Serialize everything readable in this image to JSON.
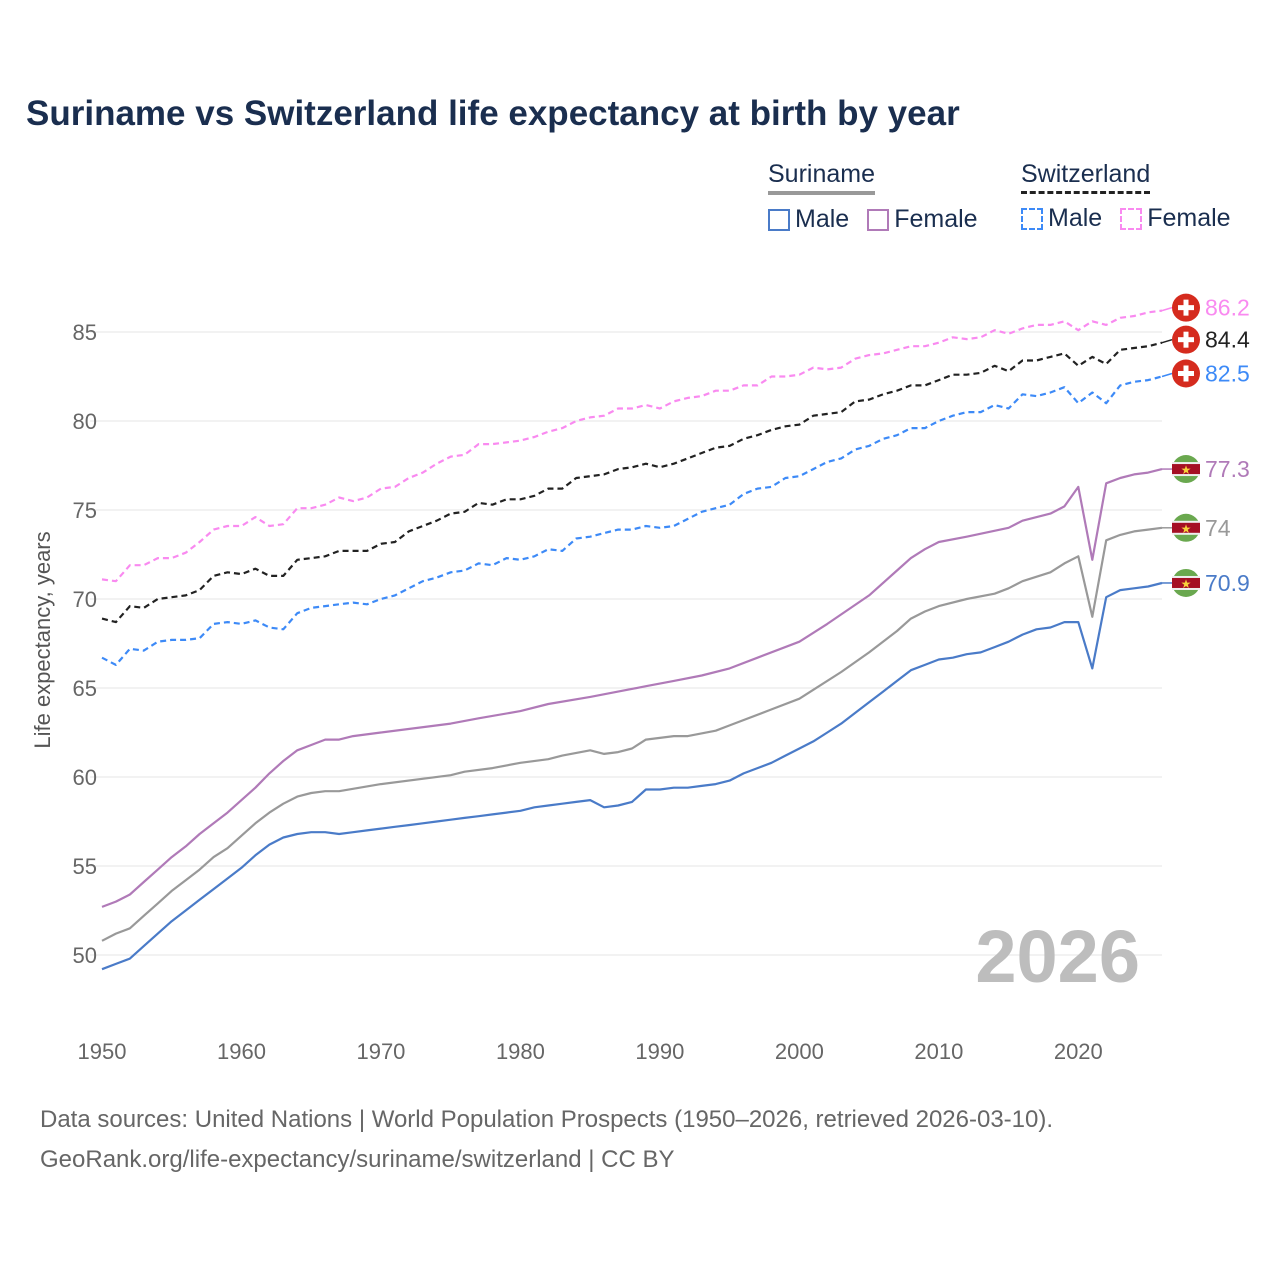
{
  "title": "Suriname vs Switzerland life expectancy at birth by year",
  "legend": {
    "groups": [
      {
        "name": "Suriname",
        "items": [
          "Male",
          "Female"
        ]
      },
      {
        "name": "Switzerland",
        "items": [
          "Male",
          "Female"
        ]
      }
    ]
  },
  "footer": {
    "line1": "Data sources: United Nations | World Population Prospects (1950–2026, retrieved 2026-03-10).",
    "line2": "GeoRank.org/life-expectancy/suriname/switzerland | CC BY"
  },
  "chart_data": {
    "type": "line",
    "title": "Suriname vs Switzerland life expectancy at birth by year",
    "xlabel": "",
    "ylabel": "Life expectancy, years",
    "xlim": [
      1950,
      2026
    ],
    "ylim": [
      48.5,
      87
    ],
    "xticks": [
      1950,
      1960,
      1970,
      1980,
      1990,
      2000,
      2010,
      2020
    ],
    "yticks": [
      50,
      55,
      60,
      65,
      70,
      75,
      80,
      85
    ],
    "grid": true,
    "year_watermark": "2026",
    "series": [
      {
        "name": "Switzerland Female",
        "country": "Switzerland",
        "color": "#f98af0",
        "dashed": true,
        "end_label": "86.2",
        "flag": "switzerland",
        "x": [
          1950,
          1951,
          1952,
          1953,
          1954,
          1955,
          1956,
          1957,
          1958,
          1959,
          1960,
          1961,
          1962,
          1963,
          1964,
          1965,
          1966,
          1967,
          1968,
          1969,
          1970,
          1971,
          1972,
          1973,
          1974,
          1975,
          1976,
          1977,
          1978,
          1979,
          1980,
          1981,
          1982,
          1983,
          1984,
          1985,
          1986,
          1987,
          1988,
          1989,
          1990,
          1991,
          1992,
          1993,
          1994,
          1995,
          1996,
          1997,
          1998,
          1999,
          2000,
          2001,
          2002,
          2003,
          2004,
          2005,
          2006,
          2007,
          2008,
          2009,
          2010,
          2011,
          2012,
          2013,
          2014,
          2015,
          2016,
          2017,
          2018,
          2019,
          2020,
          2021,
          2022,
          2023,
          2024,
          2025,
          2026
        ],
        "y": [
          71.1,
          71.0,
          71.9,
          71.9,
          72.3,
          72.3,
          72.6,
          73.2,
          73.9,
          74.1,
          74.1,
          74.6,
          74.1,
          74.2,
          75.1,
          75.1,
          75.3,
          75.7,
          75.5,
          75.7,
          76.2,
          76.3,
          76.8,
          77.1,
          77.6,
          78.0,
          78.1,
          78.7,
          78.7,
          78.8,
          78.9,
          79.1,
          79.4,
          79.6,
          80.0,
          80.2,
          80.3,
          80.7,
          80.7,
          80.9,
          80.7,
          81.1,
          81.3,
          81.4,
          81.7,
          81.7,
          82.0,
          82.0,
          82.5,
          82.5,
          82.6,
          83.0,
          82.9,
          83.0,
          83.5,
          83.7,
          83.8,
          84.0,
          84.2,
          84.2,
          84.4,
          84.7,
          84.6,
          84.7,
          85.1,
          84.9,
          85.2,
          85.4,
          85.4,
          85.6,
          85.1,
          85.6,
          85.4,
          85.8,
          85.9,
          86.1,
          86.2
        ]
      },
      {
        "name": "Switzerland",
        "country": "Switzerland",
        "color": "#222222",
        "dashed": true,
        "end_label": "84.4",
        "flag": "switzerland",
        "x": [
          1950,
          1951,
          1952,
          1953,
          1954,
          1955,
          1956,
          1957,
          1958,
          1959,
          1960,
          1961,
          1962,
          1963,
          1964,
          1965,
          1966,
          1967,
          1968,
          1969,
          1970,
          1971,
          1972,
          1973,
          1974,
          1975,
          1976,
          1977,
          1978,
          1979,
          1980,
          1981,
          1982,
          1983,
          1984,
          1985,
          1986,
          1987,
          1988,
          1989,
          1990,
          1991,
          1992,
          1993,
          1994,
          1995,
          1996,
          1997,
          1998,
          1999,
          2000,
          2001,
          2002,
          2003,
          2004,
          2005,
          2006,
          2007,
          2008,
          2009,
          2010,
          2011,
          2012,
          2013,
          2014,
          2015,
          2016,
          2017,
          2018,
          2019,
          2020,
          2021,
          2022,
          2023,
          2024,
          2025,
          2026
        ],
        "y": [
          68.9,
          68.7,
          69.6,
          69.5,
          70.0,
          70.1,
          70.2,
          70.5,
          71.3,
          71.5,
          71.4,
          71.7,
          71.3,
          71.3,
          72.2,
          72.3,
          72.4,
          72.7,
          72.7,
          72.7,
          73.1,
          73.2,
          73.8,
          74.1,
          74.4,
          74.8,
          74.9,
          75.4,
          75.3,
          75.6,
          75.6,
          75.8,
          76.2,
          76.2,
          76.8,
          76.9,
          77.0,
          77.3,
          77.4,
          77.6,
          77.4,
          77.6,
          77.9,
          78.2,
          78.5,
          78.6,
          79.0,
          79.2,
          79.5,
          79.7,
          79.8,
          80.3,
          80.4,
          80.5,
          81.1,
          81.2,
          81.5,
          81.7,
          82.0,
          82.0,
          82.3,
          82.6,
          82.6,
          82.7,
          83.1,
          82.8,
          83.4,
          83.4,
          83.6,
          83.8,
          83.1,
          83.6,
          83.2,
          84.0,
          84.1,
          84.2,
          84.4
        ]
      },
      {
        "name": "Switzerland Male",
        "country": "Switzerland",
        "color": "#3d8af7",
        "dashed": true,
        "end_label": "82.5",
        "flag": "switzerland",
        "x": [
          1950,
          1951,
          1952,
          1953,
          1954,
          1955,
          1956,
          1957,
          1958,
          1959,
          1960,
          1961,
          1962,
          1963,
          1964,
          1965,
          1966,
          1967,
          1968,
          1969,
          1970,
          1971,
          1972,
          1973,
          1974,
          1975,
          1976,
          1977,
          1978,
          1979,
          1980,
          1981,
          1982,
          1983,
          1984,
          1985,
          1986,
          1987,
          1988,
          1989,
          1990,
          1991,
          1992,
          1993,
          1994,
          1995,
          1996,
          1997,
          1998,
          1999,
          2000,
          2001,
          2002,
          2003,
          2004,
          2005,
          2006,
          2007,
          2008,
          2009,
          2010,
          2011,
          2012,
          2013,
          2014,
          2015,
          2016,
          2017,
          2018,
          2019,
          2020,
          2021,
          2022,
          2023,
          2024,
          2025,
          2026
        ],
        "y": [
          66.7,
          66.3,
          67.2,
          67.1,
          67.6,
          67.7,
          67.7,
          67.8,
          68.6,
          68.7,
          68.6,
          68.8,
          68.4,
          68.3,
          69.2,
          69.5,
          69.6,
          69.7,
          69.8,
          69.7,
          70.0,
          70.2,
          70.6,
          71.0,
          71.2,
          71.5,
          71.6,
          72.0,
          71.9,
          72.3,
          72.2,
          72.4,
          72.8,
          72.7,
          73.4,
          73.5,
          73.7,
          73.9,
          73.9,
          74.1,
          74.0,
          74.1,
          74.5,
          74.9,
          75.1,
          75.3,
          75.9,
          76.2,
          76.3,
          76.8,
          76.9,
          77.3,
          77.7,
          77.9,
          78.4,
          78.6,
          79.0,
          79.2,
          79.6,
          79.6,
          80.0,
          80.3,
          80.5,
          80.5,
          80.9,
          80.7,
          81.5,
          81.4,
          81.6,
          81.9,
          81.0,
          81.6,
          81.0,
          82.0,
          82.2,
          82.3,
          82.5
        ]
      },
      {
        "name": "Suriname Female",
        "country": "Suriname",
        "color": "#b07ab8",
        "dashed": false,
        "end_label": "77.3",
        "flag": "suriname",
        "x": [
          1950,
          1951,
          1952,
          1953,
          1954,
          1955,
          1956,
          1957,
          1958,
          1959,
          1960,
          1961,
          1962,
          1963,
          1964,
          1965,
          1966,
          1967,
          1968,
          1970,
          1975,
          1977,
          1980,
          1982,
          1985,
          1987,
          1989,
          1991,
          1993,
          1995,
          1997,
          2000,
          2002,
          2005,
          2007,
          2008,
          2009,
          2010,
          2012,
          2015,
          2016,
          2018,
          2019,
          2020,
          2021,
          2022,
          2023,
          2024,
          2025,
          2026
        ],
        "y": [
          52.7,
          53.0,
          53.4,
          54.1,
          54.8,
          55.5,
          56.1,
          56.8,
          57.4,
          58.0,
          58.7,
          59.4,
          60.2,
          60.9,
          61.5,
          61.8,
          62.1,
          62.1,
          62.3,
          62.5,
          63.0,
          63.3,
          63.7,
          64.1,
          64.5,
          64.8,
          65.1,
          65.4,
          65.7,
          66.1,
          66.7,
          67.6,
          68.6,
          70.2,
          71.6,
          72.3,
          72.8,
          73.2,
          73.5,
          74.0,
          74.4,
          74.8,
          75.2,
          76.3,
          72.2,
          76.5,
          76.8,
          77.0,
          77.1,
          77.3
        ]
      },
      {
        "name": "Suriname",
        "country": "Suriname",
        "color": "#999999",
        "dashed": false,
        "end_label": "74",
        "flag": "suriname",
        "x": [
          1950,
          1951,
          1952,
          1953,
          1954,
          1955,
          1956,
          1957,
          1958,
          1959,
          1960,
          1961,
          1962,
          1963,
          1964,
          1965,
          1966,
          1967,
          1970,
          1975,
          1976,
          1978,
          1980,
          1982,
          1983,
          1985,
          1986,
          1987,
          1988,
          1989,
          1991,
          1992,
          1994,
          1995,
          1998,
          2000,
          2001,
          2003,
          2005,
          2007,
          2008,
          2009,
          2010,
          2012,
          2014,
          2015,
          2016,
          2018,
          2019,
          2020,
          2021,
          2022,
          2023,
          2024,
          2025,
          2026
        ],
        "y": [
          50.8,
          51.2,
          51.5,
          52.2,
          52.9,
          53.6,
          54.2,
          54.8,
          55.5,
          56.0,
          56.7,
          57.4,
          58.0,
          58.5,
          58.9,
          59.1,
          59.2,
          59.2,
          59.6,
          60.1,
          60.3,
          60.5,
          60.8,
          61.0,
          61.2,
          61.5,
          61.3,
          61.4,
          61.6,
          62.1,
          62.3,
          62.3,
          62.6,
          62.9,
          63.8,
          64.4,
          64.9,
          65.9,
          67.0,
          68.2,
          68.9,
          69.3,
          69.6,
          70.0,
          70.3,
          70.6,
          71.0,
          71.5,
          72.0,
          72.4,
          69.0,
          73.3,
          73.6,
          73.8,
          73.9,
          74.0
        ]
      },
      {
        "name": "Suriname Male",
        "country": "Suriname",
        "color": "#4a7bc8",
        "dashed": false,
        "end_label": "70.9",
        "flag": "suriname",
        "x": [
          1950,
          1951,
          1952,
          1953,
          1954,
          1955,
          1956,
          1957,
          1958,
          1959,
          1960,
          1961,
          1962,
          1963,
          1964,
          1965,
          1966,
          1967,
          1968,
          1969,
          1970,
          1971,
          1972,
          1973,
          1974,
          1975,
          1976,
          1977,
          1978,
          1979,
          1980,
          1981,
          1982,
          1983,
          1984,
          1985,
          1986,
          1987,
          1988,
          1989,
          1990,
          1991,
          1992,
          1993,
          1994,
          1995,
          1996,
          1997,
          1998,
          1999,
          2000,
          2001,
          2002,
          2003,
          2004,
          2005,
          2006,
          2007,
          2008,
          2009,
          2010,
          2011,
          2012,
          2013,
          2014,
          2015,
          2016,
          2017,
          2018,
          2019,
          2020,
          2021,
          2022,
          2023,
          2024,
          2025,
          2026
        ],
        "y": [
          49.2,
          49.5,
          49.8,
          50.5,
          51.2,
          51.9,
          52.5,
          53.1,
          53.7,
          54.3,
          54.9,
          55.6,
          56.2,
          56.6,
          56.8,
          56.9,
          56.9,
          56.8,
          56.9,
          57.0,
          57.1,
          57.2,
          57.3,
          57.4,
          57.5,
          57.6,
          57.7,
          57.8,
          57.9,
          58.0,
          58.1,
          58.3,
          58.4,
          58.5,
          58.6,
          58.7,
          58.3,
          58.4,
          58.6,
          59.3,
          59.3,
          59.4,
          59.4,
          59.5,
          59.6,
          59.8,
          60.2,
          60.5,
          60.8,
          61.2,
          61.6,
          62.0,
          62.5,
          63.0,
          63.6,
          64.2,
          64.8,
          65.4,
          66.0,
          66.3,
          66.6,
          66.7,
          66.9,
          67.0,
          67.3,
          67.6,
          68.0,
          68.3,
          68.4,
          68.7,
          68.7,
          66.1,
          70.1,
          70.5,
          70.6,
          70.7,
          70.9
        ]
      }
    ]
  }
}
